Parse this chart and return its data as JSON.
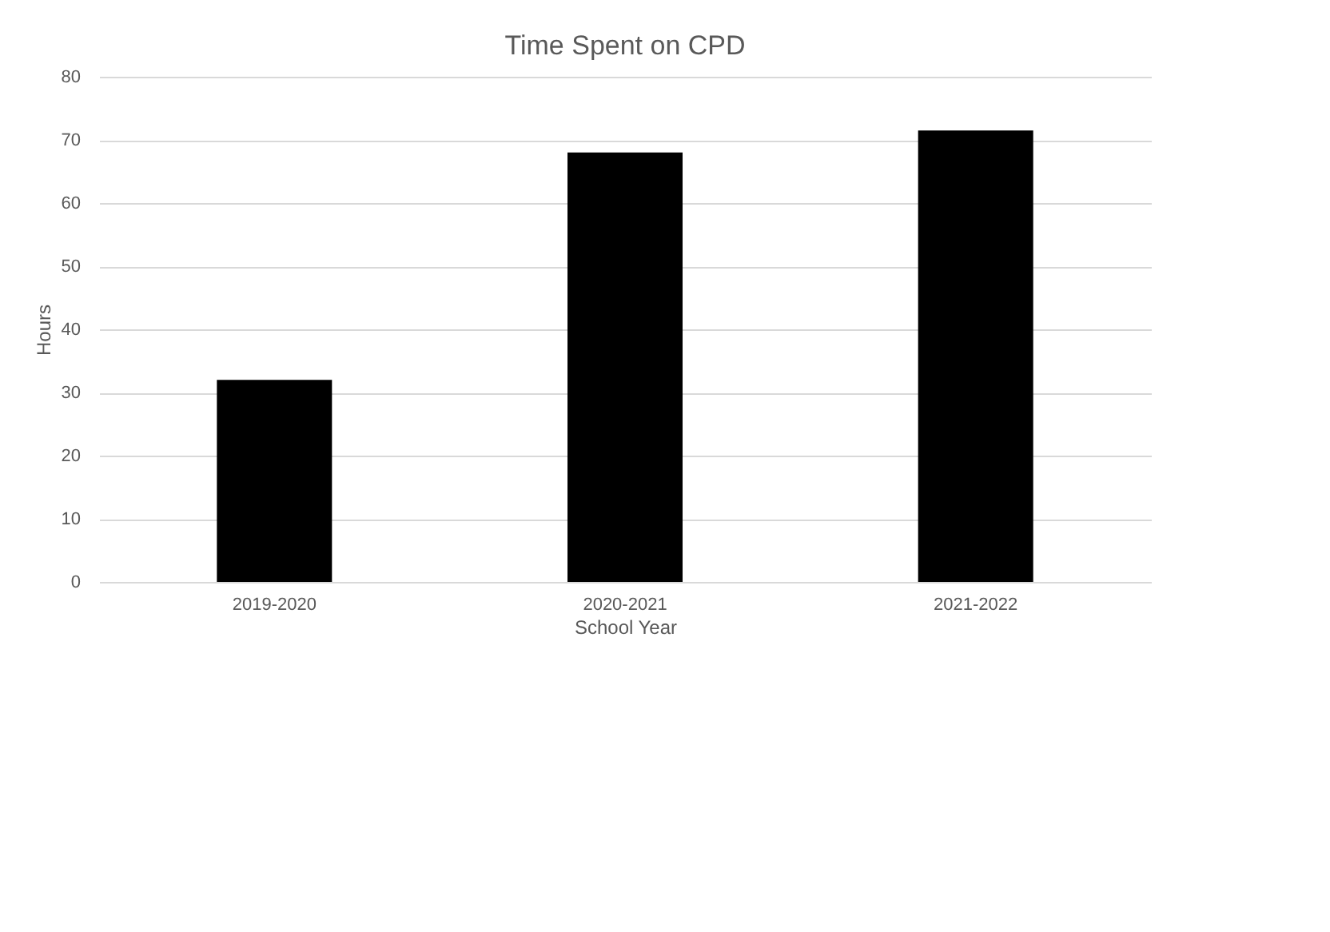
{
  "chart_data": {
    "type": "bar",
    "title": "Time Spent on CPD",
    "xlabel": "School Year",
    "ylabel": "Hours",
    "categories": [
      "2019-2020",
      "2020-2021",
      "2021-2022"
    ],
    "values": [
      32,
      68,
      71.5
    ],
    "color": "#000000",
    "ylim": [
      0,
      80
    ],
    "yticks": [
      0,
      10,
      20,
      30,
      40,
      50,
      60,
      70,
      80
    ],
    "grid": "y"
  }
}
